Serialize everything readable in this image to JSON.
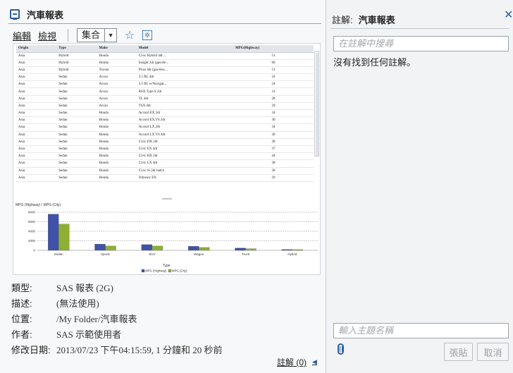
{
  "report": {
    "title": "汽車報表",
    "menu": {
      "edit": "編輯",
      "view": "檢視"
    },
    "view_mode": "集合"
  },
  "thumbnail": {
    "table": {
      "columns": [
        "Origin",
        "Type",
        "Make",
        "Model",
        "MPG(Highway)"
      ],
      "rows": [
        [
          "Asia",
          "Hybrid",
          "Honda",
          "Civic Hybrid 4dr ...",
          "51"
        ],
        [
          "Asia",
          "Hybrid",
          "Honda",
          "Insight 2dr (gas/ele...",
          "66"
        ],
        [
          "Asia",
          "Hybrid",
          "Toyota",
          "Prius 4dr (gas/elec...",
          "51"
        ],
        [
          "Asia",
          "Sedan",
          "Acura",
          "3.5 RL 4dr",
          "24"
        ],
        [
          "Asia",
          "Sedan",
          "Acura",
          "3.5 RL w/Navigat...",
          "24"
        ],
        [
          "Asia",
          "Sedan",
          "Acura",
          "RSX Type S 2dr",
          "31"
        ],
        [
          "Asia",
          "Sedan",
          "Acura",
          "TL 4dr",
          "28"
        ],
        [
          "Asia",
          "Sedan",
          "Acura",
          "TSX 4dr",
          "29"
        ],
        [
          "Asia",
          "Sedan",
          "Honda",
          "Accord EX 2dr",
          "34"
        ],
        [
          "Asia",
          "Sedan",
          "Honda",
          "Accord EX V6 2dr",
          "30"
        ],
        [
          "Asia",
          "Sedan",
          "Honda",
          "Accord LX 2dr",
          "34"
        ],
        [
          "Asia",
          "Sedan",
          "Honda",
          "Accord LX V6 4dr",
          "30"
        ],
        [
          "Asia",
          "Sedan",
          "Honda",
          "Civic DX 2dr",
          "38"
        ],
        [
          "Asia",
          "Sedan",
          "Honda",
          "Civic EX 4dr",
          "37"
        ],
        [
          "Asia",
          "Sedan",
          "Honda",
          "Civic HX 2dr",
          "44"
        ],
        [
          "Asia",
          "Sedan",
          "Honda",
          "Civic LX 4dr",
          "38"
        ],
        [
          "Asia",
          "Sedan",
          "Honda",
          "Civic Si 2dr hatch",
          "30"
        ],
        [
          "Asia",
          "Sedan",
          "Honda",
          "Odyssey EX",
          "29"
        ]
      ]
    }
  },
  "chart_data": {
    "type": "bar",
    "title": "MPG (Highway) / MPG (City)",
    "xlabel": "Type",
    "ylabel": "",
    "categories": [
      "Sedan",
      "Sports",
      "SUV",
      "Wagon",
      "Truck",
      "Hybrid"
    ],
    "series": [
      {
        "name": "MPG (Highway)",
        "values": [
          7600,
          1300,
          1200,
          850,
          480,
          170
        ],
        "color": "#3f51a8"
      },
      {
        "name": "MPG (City)",
        "values": [
          5500,
          900,
          900,
          600,
          350,
          150
        ],
        "color": "#8db033"
      }
    ],
    "yticks": [
      "0",
      "2000",
      "4000",
      "6000",
      "8000"
    ],
    "ylim": [
      0,
      8000
    ],
    "grid": true,
    "legend": "bottom"
  },
  "meta": {
    "type_label": "類型:",
    "type_value": "SAS 報表 (2G)",
    "desc_label": "描述:",
    "desc_value": "(無法使用)",
    "location_label": "位置:",
    "location_value": "/My Folder/汽車報表",
    "author_label": "作者:",
    "author_value": "SAS 示範使用者",
    "modified_label": "修改日期:",
    "modified_value": "2013/07/23 下午04:15:59, 1 分鐘和 20 秒前"
  },
  "comments_link": "註解 (0)",
  "comments_panel": {
    "prefix": "註解:",
    "title": "汽車報表",
    "search_placeholder": "在註解中搜尋",
    "empty_text": "沒有找到任何註解。",
    "subject_placeholder": "輸入主題名稱",
    "post_label": "張貼",
    "cancel_label": "取消"
  },
  "colors": {
    "accent": "#2c5f9e",
    "highway": "#3f51a8",
    "city": "#8db033"
  }
}
